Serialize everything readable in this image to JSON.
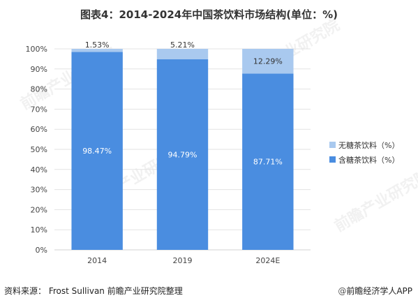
{
  "chart_data": {
    "type": "bar",
    "stacked": true,
    "title": "图表4：2014-2024年中国茶饮料市场结构(单位：%)",
    "categories": [
      "2014",
      "2019",
      "2024E"
    ],
    "series": [
      {
        "name": "含糖茶饮料（%）",
        "values": [
          98.47,
          94.79,
          87.71
        ],
        "labels": [
          "98.47%",
          "94.79%",
          "87.71%"
        ],
        "color": "#4a8de0"
      },
      {
        "name": "无糖茶饮料（%）",
        "values": [
          1.53,
          5.21,
          12.29
        ],
        "labels": [
          "1.53%",
          "5.21%",
          "12.29%"
        ],
        "color": "#a9c9ef"
      }
    ],
    "y_ticks": [
      "0%",
      "10%",
      "20%",
      "30%",
      "40%",
      "50%",
      "60%",
      "70%",
      "80%",
      "90%",
      "100%"
    ],
    "ylim": [
      0,
      100
    ],
    "grid": true,
    "legend_position": "right"
  },
  "footer": {
    "source": "资料来源：  Frost Sullivan 前瞻产业研究院整理",
    "brand_icon": "@",
    "brand": "前瞻经济学人APP"
  },
  "watermark": {
    "text": "前瞻产业研究院"
  }
}
